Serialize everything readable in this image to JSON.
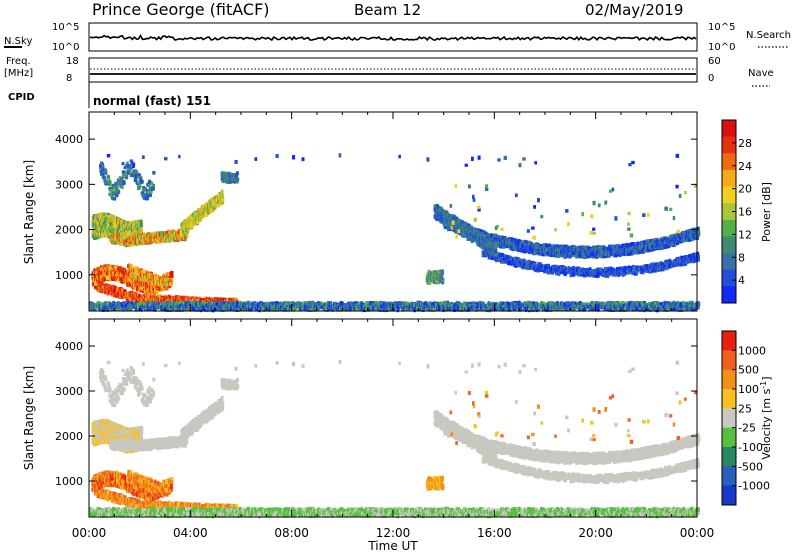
{
  "header": {
    "radar": "Prince George (fitACF)",
    "beam": "Beam 12",
    "date": "02/May/2019"
  },
  "top_panels": {
    "nsky_label": "N.Sky",
    "nsky_ticks": [
      "10^5",
      "10^0"
    ],
    "nsearch_label": "N.Search",
    "nsearch_ticks": [
      "10^5",
      "10^0"
    ],
    "freq_label": "Freq.",
    "freq_unit": "[MHz]",
    "freq_ticks": [
      "18",
      "8"
    ],
    "nave_label": "Nave",
    "nave_ticks": [
      "60",
      "0"
    ],
    "cpid_label": "CPID",
    "cpid_value": "normal (fast) 151"
  },
  "chart_data": [
    {
      "type": "heatmap",
      "panel": "power",
      "ylabel": "Slant Range [km]",
      "yticks": [
        "1000",
        "2000",
        "3000",
        "4000"
      ],
      "ylim": [
        200,
        4600
      ],
      "xlim": [
        0,
        24
      ],
      "colorbar_label": "Power [dB]",
      "colorbar_ticks": [
        "4",
        "8",
        "12",
        "16",
        "20",
        "24",
        "28"
      ],
      "colors": [
        "#1028ff",
        "#2050d8",
        "#3a6fa8",
        "#3c8a70",
        "#55b04a",
        "#a8c83a",
        "#f0d020",
        "#f8a818",
        "#f06a10",
        "#e83010",
        "#d81010"
      ]
    },
    {
      "type": "heatmap",
      "panel": "velocity",
      "ylabel": "Slant Range [km]",
      "yticks": [
        "1000",
        "2000",
        "3000",
        "4000"
      ],
      "ylim": [
        200,
        4600
      ],
      "xlim": [
        0,
        24
      ],
      "xlabel": "Time UT",
      "xticks": [
        "00:00",
        "04:00",
        "08:00",
        "12:00",
        "16:00",
        "20:00",
        "00:00"
      ],
      "colorbar_label": "Velocity [m s",
      "colorbar_unit_sup": "-1",
      "colorbar_unit_close": "]",
      "colorbar_ticks": [
        "1000",
        "500",
        "100",
        "25",
        "-25",
        "-100",
        "-500",
        "-1000"
      ],
      "colors": [
        "#1838c8",
        "#2860c0",
        "#288a60",
        "#58c040",
        "#c8c8c0",
        "#f8c020",
        "#f09018",
        "#f06020",
        "#e82010"
      ]
    }
  ]
}
